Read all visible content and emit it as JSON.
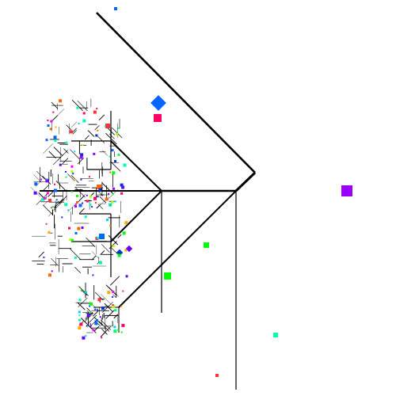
{
  "figure": {
    "kind": "radial-tree",
    "background": "#ffffff",
    "edge_color": "#000000",
    "node_palette": [
      "#0066ff",
      "#9900ff",
      "#00ff00",
      "#00ffaa",
      "#ff0066",
      "#ffaa00",
      "#00ccff",
      "#ff00ff",
      "#6600ff",
      "#ff3333",
      "#00ff66",
      "#aaff00",
      "#0033cc",
      "#ff6600"
    ]
  }
}
